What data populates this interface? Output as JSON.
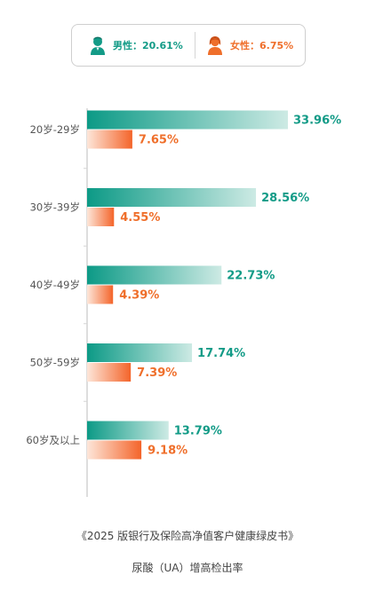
{
  "legend": {
    "male": {
      "label": "男性：20.61%",
      "icon": "male-user-icon"
    },
    "female": {
      "label": "女性：6.75%",
      "icon": "female-user-icon"
    }
  },
  "colors": {
    "male_dark": "#0c9a86",
    "male_light": "#cdeae4",
    "female_dark": "#f4642a",
    "female_light": "#fde6d9"
  },
  "chart_data": {
    "type": "bar",
    "orientation": "horizontal",
    "categories": [
      "20岁-29岁",
      "30岁-39岁",
      "40岁-49岁",
      "50岁-59岁",
      "60岁及以上"
    ],
    "series": [
      {
        "name": "男性",
        "values": [
          33.96,
          28.56,
          22.73,
          17.74,
          13.79
        ],
        "labels": [
          "33.96%",
          "28.56%",
          "22.73%",
          "17.74%",
          "13.79%"
        ]
      },
      {
        "name": "女性",
        "values": [
          7.65,
          4.55,
          4.39,
          7.39,
          9.18
        ],
        "labels": [
          "7.65%",
          "4.55%",
          "4.39%",
          "7.39%",
          "9.18%"
        ]
      }
    ],
    "xlim": [
      0,
      40
    ],
    "grid": false
  },
  "footer": {
    "source": "《2025 版银行及保险高净值客户健康绿皮书》",
    "metric": "尿酸（UA）增高检出率"
  }
}
